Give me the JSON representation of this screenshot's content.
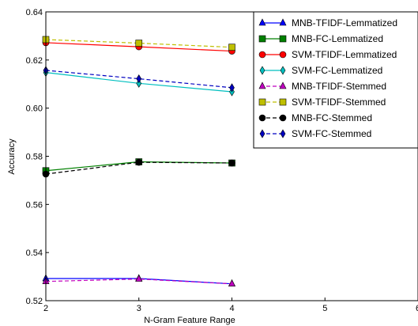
{
  "chart_data": {
    "type": "line",
    "title": "",
    "xlabel": "N-Gram Feature Range",
    "ylabel": "Accuracy",
    "xlim": [
      2,
      6
    ],
    "ylim": [
      0.52,
      0.64
    ],
    "xticks": [
      "2",
      "3",
      "4",
      "5",
      "6"
    ],
    "yticks": [
      "0.52",
      "0.54",
      "0.56",
      "0.58",
      "0.60",
      "0.62",
      "0.64"
    ],
    "grid": false,
    "legend_position": "top-right",
    "x": [
      2,
      3,
      4
    ],
    "series": [
      {
        "name": "MNB-TFIDF-Lemmatized",
        "values": [
          0.5292,
          0.5292,
          0.527
        ],
        "color": "#0000ff",
        "marker": "triangle",
        "dashed": false
      },
      {
        "name": "MNB-FC-Lemmatized",
        "values": [
          0.574,
          0.5777,
          0.5772
        ],
        "color": "#008000",
        "marker": "square",
        "dashed": false
      },
      {
        "name": "SVM-TFIDF-Lemmatized",
        "values": [
          0.6272,
          0.6255,
          0.6237
        ],
        "color": "#ff0000",
        "marker": "circle",
        "dashed": false
      },
      {
        "name": "SVM-FC-Lemmatized",
        "values": [
          0.6148,
          0.6103,
          0.6068
        ],
        "color": "#00bfbf",
        "marker": "diamond",
        "dashed": false
      },
      {
        "name": "MNB-TFIDF-Stemmed",
        "values": [
          0.528,
          0.529,
          0.527
        ],
        "color": "#bf00bf",
        "marker": "triangle",
        "dashed": true
      },
      {
        "name": "SVM-TFIDF-Stemmed",
        "values": [
          0.6285,
          0.627,
          0.6253
        ],
        "color": "#bfbf00",
        "marker": "square",
        "dashed": true
      },
      {
        "name": "MNB-FC-Stemmed",
        "values": [
          0.5726,
          0.5775,
          0.5772
        ],
        "color": "#000000",
        "marker": "circle",
        "dashed": true
      },
      {
        "name": "SVM-FC-Stemmed",
        "values": [
          0.6157,
          0.6122,
          0.6085
        ],
        "color": "#0000c0",
        "marker": "diamond",
        "dashed": true
      }
    ]
  }
}
